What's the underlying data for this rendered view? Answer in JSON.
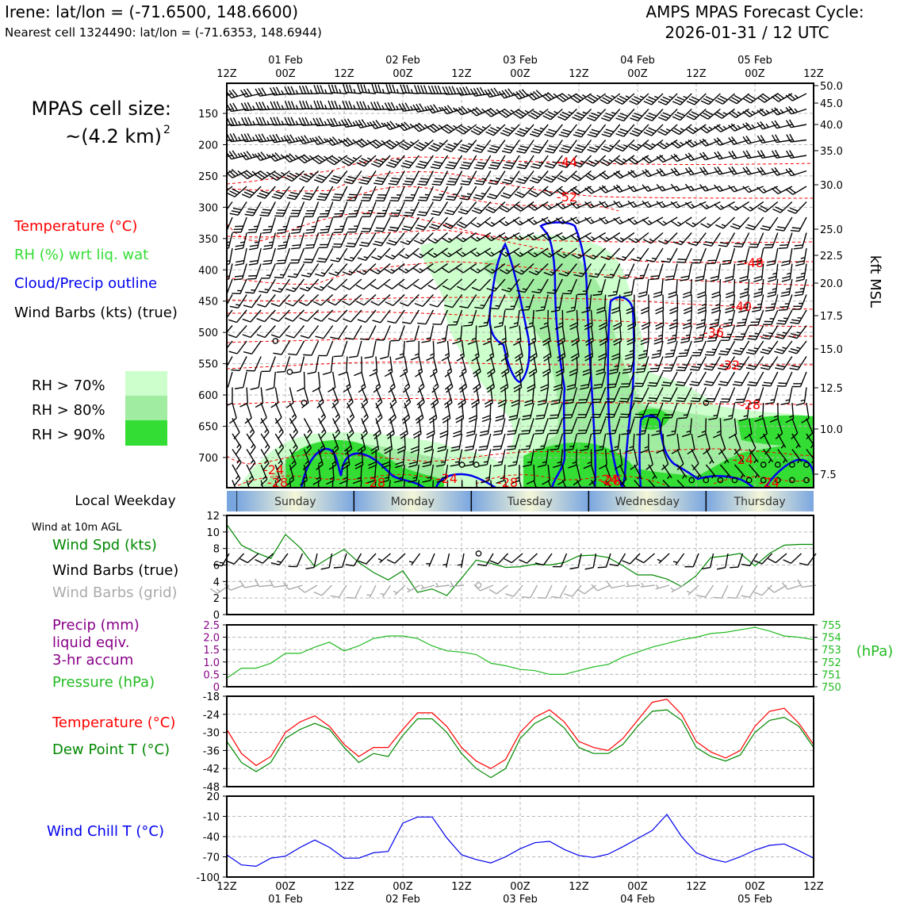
{
  "header": {
    "location_line": "Irene: lat/lon = (-71.6500, 148.6600)",
    "cell_line": "Nearest cell 1324490: lat/lon = (-71.6353, 148.6944)",
    "forecast_title": "AMPS MPAS Forecast Cycle:",
    "forecast_cycle": "2026-01-31 / 12 UTC"
  },
  "legend": {
    "cell_size_label": "MPAS cell size:",
    "cell_size_value": "~(4.2 km)",
    "cell_size_exp": "2",
    "temperature": "Temperature (°C)",
    "rh": "RH (%) wrt liq. wat",
    "cloud": "Cloud/Precip outline",
    "wind_barbs": "Wind Barbs (kts) (true)",
    "rh70": "RH > 70%",
    "rh80": "RH > 80%",
    "rh90": "RH > 90%"
  },
  "colors": {
    "temperature": "#ff0000",
    "rh_label": "#33dd33",
    "cloud": "#0000ee",
    "rh70": "#ccffcc",
    "rh80": "#a0eca0",
    "rh90": "#33dd33",
    "wind_speed": "#008800",
    "grid_barb": "#aaaaaa",
    "precip": "#880088",
    "pressure": "#22bb22",
    "dewpoint": "#008800",
    "windchill": "#0000ee"
  },
  "time_axis": {
    "hour_labels": [
      "12Z",
      "00Z",
      "12Z",
      "00Z",
      "12Z",
      "00Z",
      "12Z",
      "00Z",
      "12Z",
      "00Z",
      "12Z"
    ],
    "date_labels": [
      "01 Feb",
      "02 Feb",
      "03 Feb",
      "04 Feb",
      "05 Feb"
    ]
  },
  "weekday": {
    "label": "Local Weekday",
    "days": [
      "Sunday",
      "Monday",
      "Tuesday",
      "Wednesday",
      "Thursday"
    ]
  },
  "chart_data": [
    {
      "type": "cross-section",
      "left_axis_label": "",
      "left_ticks": [
        "150",
        "200",
        "250",
        "300",
        "350",
        "400",
        "450",
        "500",
        "550",
        "600",
        "650",
        "700"
      ],
      "right_axis_label": "kft MSL",
      "right_ticks": [
        "50.0",
        "45.0",
        "40.0",
        "35.0",
        "30.0",
        "25.0",
        "22.5",
        "20.0",
        "17.5",
        "15.0",
        "12.5",
        "10.0",
        "7.5"
      ],
      "temperature_contour_labels": [
        "-44",
        "-52",
        "-48",
        "-40",
        "-36",
        "-32",
        "-28",
        "-24",
        "-24",
        "-24",
        "-28",
        "-28",
        "-24",
        "-28",
        "-28",
        "-24"
      ],
      "series_note": "Temperature contours, RH shading, cloud outline and wind barbs vs time and pressure"
    },
    {
      "type": "line",
      "label_top": "Wind at 10m AGL",
      "labels": [
        "Wind Spd (kts)",
        "Wind Barbs (true)",
        "Wind Barbs (grid)"
      ],
      "y_ticks": [
        "12",
        "10",
        "8",
        "6",
        "4",
        "2",
        "0"
      ],
      "ylim": [
        0,
        12
      ],
      "x_hours": [
        0,
        3,
        6,
        9,
        12,
        15,
        18,
        21,
        24,
        27,
        30,
        33,
        36,
        39,
        42,
        45,
        48,
        51,
        54,
        57,
        60,
        63,
        66,
        69,
        72,
        75,
        78,
        81,
        84,
        87,
        90,
        93,
        96,
        99,
        102,
        105,
        108,
        111,
        114,
        117,
        120
      ],
      "wind_speed": [
        10.9,
        8.4,
        7.5,
        6.8,
        9.7,
        8.1,
        5.8,
        6.9,
        7.9,
        6.3,
        5.1,
        4.2,
        5.3,
        2.7,
        3.1,
        2.3,
        4.4,
        6.6,
        6.2,
        5.7,
        5.8,
        6.1,
        6.0,
        6.3,
        7.1,
        7.2,
        6.9,
        5.9,
        4.8,
        4.8,
        4.3,
        3.4,
        4.7,
        6.9,
        7.1,
        7.4,
        5.9,
        7.4,
        8.4,
        8.5,
        8.5
      ]
    },
    {
      "type": "line",
      "labels": [
        "Precip (mm)",
        "liquid eqiv.",
        "3-hr accum",
        "Pressure (hPa)"
      ],
      "left_ticks": [
        "2.5",
        "2.0",
        "1.5",
        "1.0",
        "0.5",
        "0"
      ],
      "right_ticks": [
        "755",
        "754",
        "753",
        "752",
        "751",
        "750"
      ],
      "right_unit": "(hPa)",
      "precip_ylim": [
        0,
        2.5
      ],
      "pressure_ylim": [
        750,
        755
      ],
      "x_hours": [
        0,
        3,
        6,
        9,
        12,
        15,
        18,
        21,
        24,
        27,
        30,
        33,
        36,
        39,
        42,
        45,
        48,
        51,
        54,
        57,
        60,
        63,
        66,
        69,
        72,
        75,
        78,
        81,
        84,
        87,
        90,
        93,
        96,
        99,
        102,
        105,
        108,
        111,
        114,
        117,
        120
      ],
      "pressure": [
        750.7,
        751.5,
        751.5,
        751.9,
        752.7,
        752.7,
        753.2,
        753.6,
        752.9,
        753.3,
        753.9,
        754.1,
        754.1,
        753.9,
        753.3,
        752.9,
        752.8,
        752.6,
        751.9,
        751.7,
        751.4,
        751.3,
        751.0,
        751.0,
        751.3,
        751.6,
        751.8,
        752.4,
        752.8,
        753.2,
        753.5,
        753.8,
        754.0,
        754.3,
        754.4,
        754.6,
        754.8,
        754.5,
        754.1,
        754.0,
        753.8
      ],
      "precip": []
    },
    {
      "type": "line",
      "labels": [
        "Temperature (°C)",
        "Dew Point T (°C)"
      ],
      "y_ticks": [
        "-18",
        "-24",
        "-30",
        "-36",
        "-42",
        "-48"
      ],
      "ylim": [
        -48,
        -18
      ],
      "x_hours": [
        0,
        3,
        6,
        9,
        12,
        15,
        18,
        21,
        24,
        27,
        30,
        33,
        36,
        39,
        42,
        45,
        48,
        51,
        54,
        57,
        60,
        63,
        66,
        69,
        72,
        75,
        78,
        81,
        84,
        87,
        90,
        93,
        96,
        99,
        102,
        105,
        108,
        111,
        114,
        117,
        120
      ],
      "temperature": [
        -29,
        -37,
        -41,
        -38,
        -30,
        -26.5,
        -24.5,
        -28,
        -34,
        -38,
        -35,
        -35,
        -29,
        -23.5,
        -23.5,
        -28,
        -35,
        -39.5,
        -42,
        -39,
        -30,
        -25,
        -22.5,
        -26.5,
        -33,
        -35,
        -36,
        -32,
        -26,
        -20,
        -19,
        -24,
        -33,
        -36.5,
        -38.5,
        -36,
        -28,
        -23,
        -22,
        -27,
        -34
      ],
      "dewpoint": [
        -33,
        -40,
        -43,
        -40,
        -32,
        -29,
        -27,
        -29,
        -35,
        -40,
        -37,
        -38,
        -31,
        -25.5,
        -25.5,
        -30,
        -37,
        -42,
        -45,
        -42,
        -32,
        -27,
        -24.5,
        -28.5,
        -35,
        -37,
        -37,
        -34,
        -28,
        -23,
        -22.5,
        -26,
        -35,
        -38,
        -39.5,
        -37.5,
        -30,
        -26,
        -25,
        -28,
        -35
      ]
    },
    {
      "type": "line",
      "labels": [
        "Wind Chill T (°C)"
      ],
      "y_ticks": [
        "20",
        "-10",
        "-40",
        "-70",
        "-100"
      ],
      "ylim": [
        -100,
        20
      ],
      "x_hours": [
        0,
        3,
        6,
        9,
        12,
        15,
        18,
        21,
        24,
        27,
        30,
        33,
        36,
        39,
        42,
        45,
        48,
        51,
        54,
        57,
        60,
        63,
        66,
        69,
        72,
        75,
        78,
        81,
        84,
        87,
        90,
        93,
        96,
        99,
        102,
        105,
        108,
        111,
        114,
        117,
        120
      ],
      "wind_chill": [
        -67,
        -82,
        -84,
        -72,
        -69,
        -56,
        -45,
        -56,
        -72,
        -72,
        -64,
        -62,
        -20,
        -11,
        -11,
        -42,
        -67,
        -74,
        -79,
        -70,
        -58,
        -49,
        -47,
        -59,
        -68,
        -71,
        -66,
        -55,
        -43,
        -31,
        -7,
        -40,
        -64,
        -73,
        -78,
        -70,
        -60,
        -53,
        -51,
        -61,
        -72
      ]
    }
  ]
}
